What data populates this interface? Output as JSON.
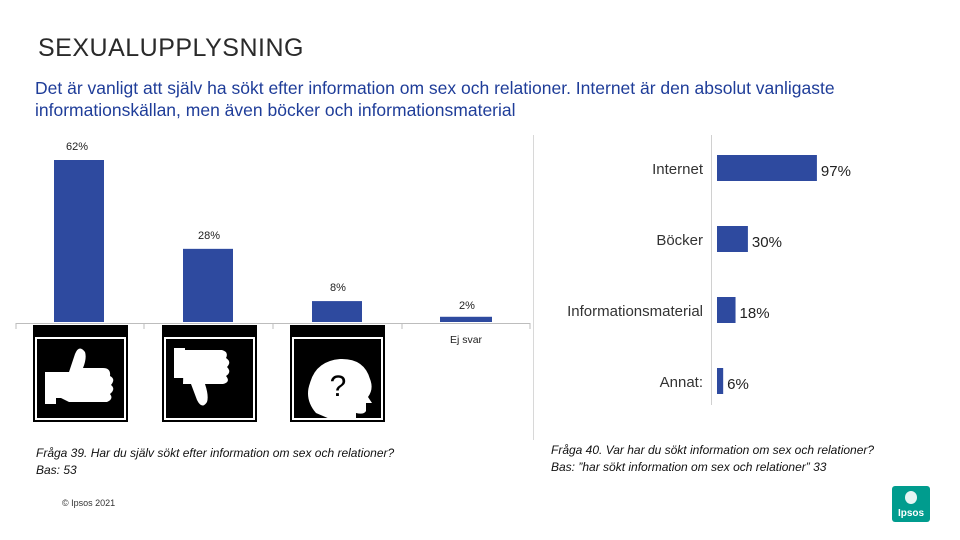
{
  "title": "SEXUALUPPLYSNING",
  "subtitle": "Det är vanligt att själv ha sökt efter information om sex och relationer. Internet är den absolut vanligaste informationskällan, men även böcker och informationsmaterial",
  "chart_data": [
    {
      "type": "bar",
      "orientation": "vertical",
      "categories": [
        "ja",
        "nej",
        "svårt att förstå",
        "Ej svar"
      ],
      "values": [
        62,
        28,
        8,
        2
      ],
      "value_labels": [
        "62%",
        "28%",
        "8%",
        "2%"
      ],
      "ylim": [
        0,
        62
      ],
      "color": "#2e4a9f",
      "icons": [
        "thumbs-up-icon",
        "thumbs-down-icon",
        "question-head-icon"
      ]
    },
    {
      "type": "bar",
      "orientation": "horizontal",
      "categories": [
        "Internet",
        "Böcker",
        "Informationsmaterial",
        "Annat:"
      ],
      "values": [
        97,
        30,
        18,
        6
      ],
      "value_labels": [
        "97%",
        "30%",
        "18%",
        "6%"
      ],
      "xlim": [
        0,
        100
      ],
      "color": "#2e4a9f"
    }
  ],
  "questions": {
    "left_line1": "Fråga 39. Har du själv sökt efter information om sex och relationer?",
    "left_line2": "Bas: 53",
    "right_line1": "Fråga 40. Var har du sökt information om sex och relationer?",
    "right_line2": "Bas: ”har sökt information om sex och relationer” 33"
  },
  "copyright": "© Ipsos 2021",
  "logo": "Ipsos",
  "colors": {
    "bar": "#2e4a9f",
    "subtitle": "#1f3d99",
    "logo": "#009c8e"
  }
}
